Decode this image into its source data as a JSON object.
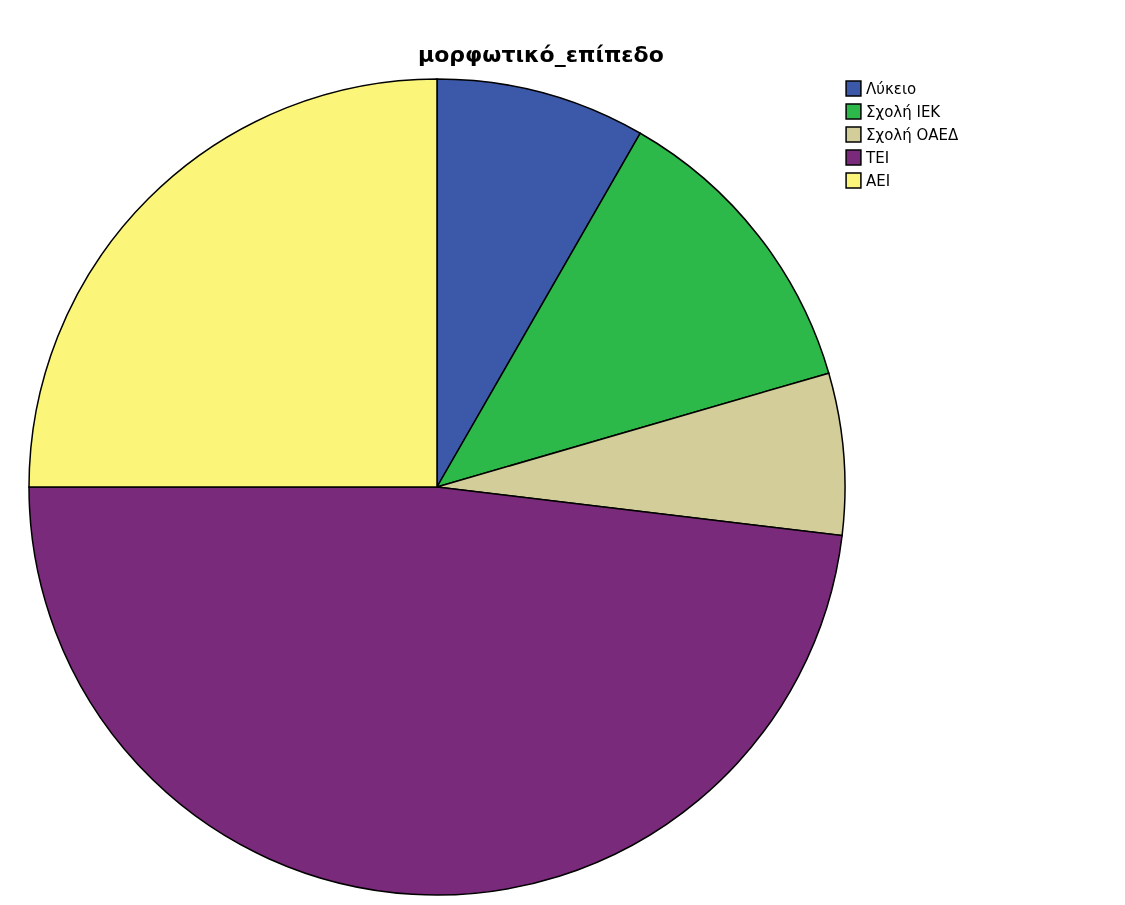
{
  "chart_data": {
    "type": "pie",
    "title": "μορφωτικό_επίπεδο",
    "categories": [
      "Λύκειο",
      "Σχολή ΙΕΚ",
      "Σχολή ΟΑΕΔ",
      "ΤΕΙ",
      "ΑΕΙ"
    ],
    "values": [
      8.3,
      12.2,
      6.4,
      48.1,
      25
    ],
    "colors": [
      "#3c58a8",
      "#2db84a",
      "#d3cd9a",
      "#7a2a7a",
      "#fbf67a"
    ],
    "legend": "top right"
  }
}
